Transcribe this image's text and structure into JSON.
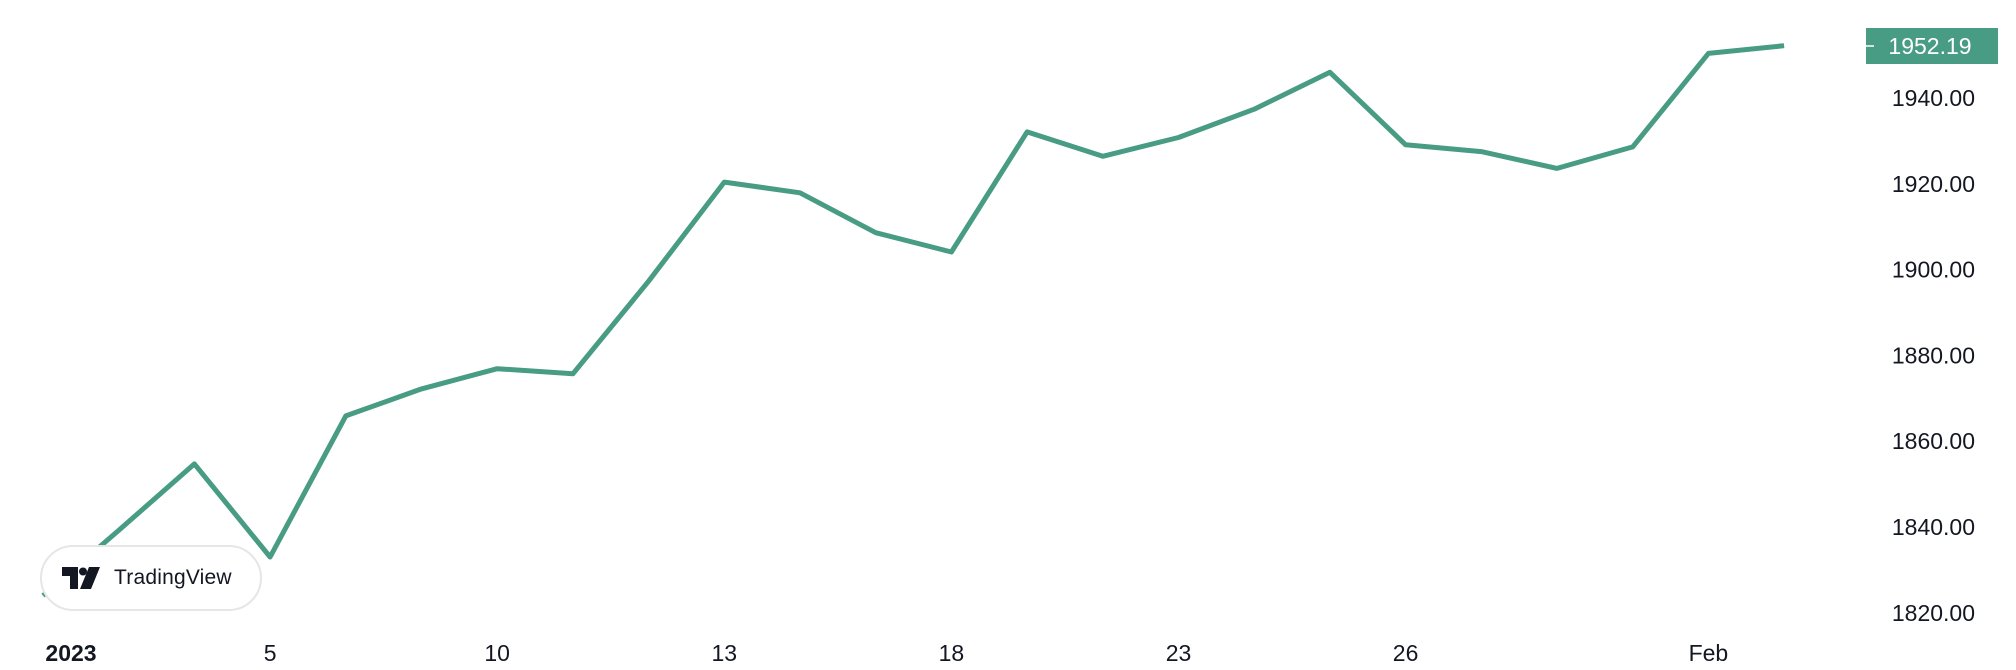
{
  "chart_data": {
    "type": "line",
    "title": "",
    "xlabel": "",
    "ylabel": "",
    "x": [
      "2023-01-02",
      "2023-01-03",
      "2023-01-04",
      "2023-01-05",
      "2023-01-06",
      "2023-01-09",
      "2023-01-10",
      "2023-01-11",
      "2023-01-12",
      "2023-01-13",
      "2023-01-16",
      "2023-01-17",
      "2023-01-18",
      "2023-01-19",
      "2023-01-20",
      "2023-01-23",
      "2023-01-24",
      "2023-01-25",
      "2023-01-26",
      "2023-01-27",
      "2023-01-30",
      "2023-01-31",
      "2023-02-01",
      "2023-02-02"
    ],
    "series": [
      {
        "values": [
          1824.0,
          1839.2,
          1854.7,
          1833.0,
          1865.9,
          1872.2,
          1876.9,
          1875.7,
          1897.3,
          1920.4,
          1917.9,
          1908.6,
          1904.1,
          1932.1,
          1926.4,
          1930.8,
          1937.4,
          1946.0,
          1929.1,
          1927.5,
          1923.6,
          1928.6,
          1950.4,
          1952.19
        ]
      }
    ],
    "x_tick_labels": [
      {
        "label": "2023",
        "index": 0,
        "bold": true
      },
      {
        "label": "5",
        "index": 3
      },
      {
        "label": "10",
        "index": 6
      },
      {
        "label": "13",
        "index": 9
      },
      {
        "label": "18",
        "index": 12
      },
      {
        "label": "23",
        "index": 15
      },
      {
        "label": "26",
        "index": 18
      },
      {
        "label": "Feb",
        "index": 22
      }
    ],
    "y_ticks": [
      1940,
      1920,
      1900,
      1880,
      1860,
      1840,
      1820
    ],
    "y_tick_labels": [
      "1940.00",
      "1920.00",
      "1900.00",
      "1880.00",
      "1860.00",
      "1840.00",
      "1820.00"
    ],
    "ylim": [
      1812,
      1959
    ],
    "grid": false,
    "last_price_label": "1952.19",
    "line_color": "#489c84"
  },
  "watermark": {
    "logo_text": "TradingView",
    "icon": "tradingview-logo-icon"
  }
}
